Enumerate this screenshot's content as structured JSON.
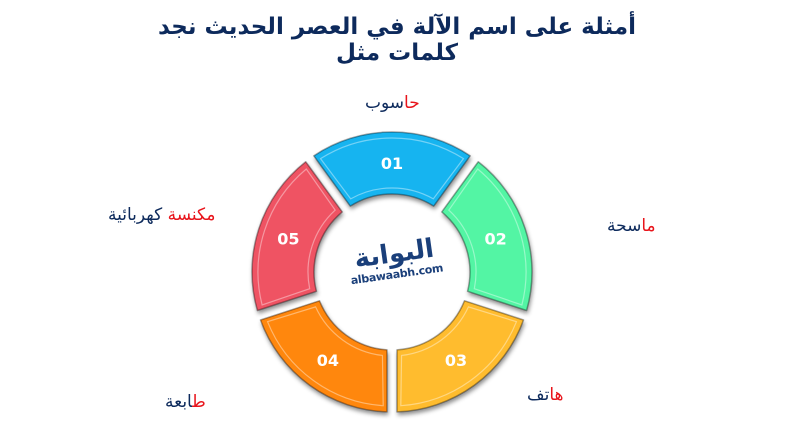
{
  "title": {
    "line1": "أمثلة على اسم الآلة في العصر الحديث نجد",
    "line2": "كلمات مثل"
  },
  "logo": {
    "arabic": "البوابة",
    "domain": "albawaabh.com"
  },
  "segments": [
    {
      "number": "01",
      "color": "#16b4f0",
      "label_red": "حا",
      "label_blue": "سوب"
    },
    {
      "number": "02",
      "color": "#52f5a4",
      "label_red": "ما",
      "label_blue": "سحة"
    },
    {
      "number": "03",
      "color": "#ffbc2e",
      "label_red": "ها",
      "label_blue": "تف"
    },
    {
      "number": "04",
      "color": "#ff870f",
      "label_red": "ط",
      "label_blue": "ابعة"
    },
    {
      "number": "05",
      "color": "#ef5364",
      "label_red": "مكنسة",
      "label_blue": "كهربائية"
    }
  ],
  "colors": {
    "title": "#0d2a5c",
    "accent": "#e8141b"
  }
}
